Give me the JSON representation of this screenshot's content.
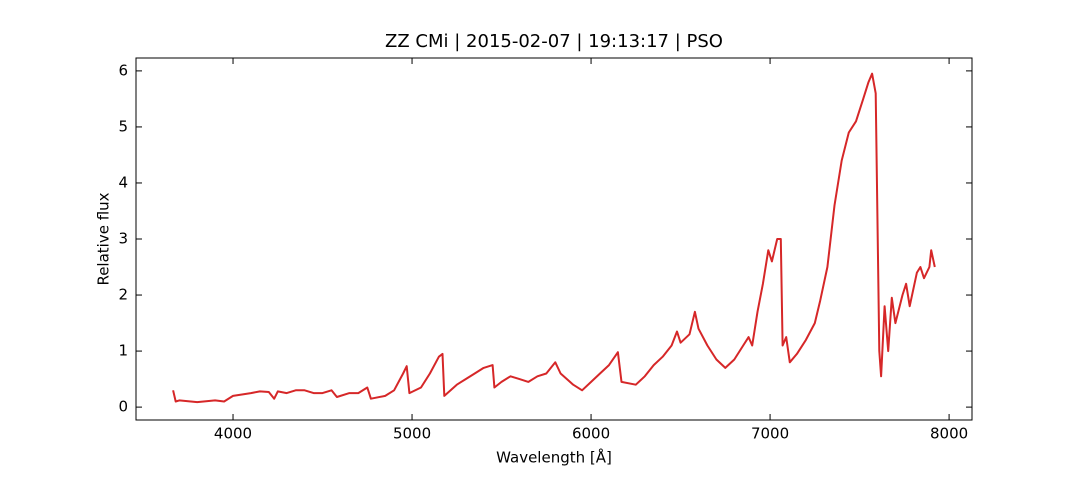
{
  "chart_data": {
    "type": "line",
    "title": "ZZ CMi | 2015-02-07 | 19:13:17 | PSO",
    "xlabel": "Wavelength [Å]",
    "ylabel": "Relative flux",
    "x": [
      3665,
      3680,
      3700,
      3800,
      3900,
      3950,
      4000,
      4100,
      4150,
      4200,
      4230,
      4250,
      4300,
      4350,
      4400,
      4450,
      4500,
      4550,
      4580,
      4650,
      4700,
      4750,
      4770,
      4850,
      4900,
      4950,
      4970,
      4985,
      5050,
      5100,
      5150,
      5170,
      5180,
      5250,
      5300,
      5350,
      5400,
      5450,
      5460,
      5500,
      5550,
      5600,
      5650,
      5700,
      5750,
      5800,
      5830,
      5900,
      5950,
      6000,
      6050,
      6100,
      6150,
      6170,
      6250,
      6300,
      6350,
      6400,
      6450,
      6480,
      6500,
      6550,
      6580,
      6600,
      6650,
      6700,
      6750,
      6800,
      6850,
      6880,
      6900,
      6930,
      6960,
      6990,
      7010,
      7040,
      7060,
      7070,
      7090,
      7110,
      7150,
      7200,
      7250,
      7280,
      7320,
      7360,
      7400,
      7440,
      7480,
      7520,
      7550,
      7570,
      7590,
      7610,
      7620,
      7640,
      7660,
      7680,
      7700,
      7740,
      7760,
      7780,
      7820,
      7840,
      7860,
      7890,
      7900,
      7920
    ],
    "series": [
      {
        "name": "ZZ CMi",
        "color": "#d62728",
        "values": [
          0.3,
          0.1,
          0.12,
          0.09,
          0.12,
          0.1,
          0.2,
          0.25,
          0.28,
          0.27,
          0.15,
          0.28,
          0.25,
          0.3,
          0.3,
          0.25,
          0.25,
          0.3,
          0.18,
          0.25,
          0.25,
          0.35,
          0.15,
          0.2,
          0.3,
          0.6,
          0.73,
          0.25,
          0.35,
          0.6,
          0.9,
          0.95,
          0.2,
          0.4,
          0.5,
          0.6,
          0.7,
          0.75,
          0.35,
          0.45,
          0.55,
          0.5,
          0.45,
          0.55,
          0.6,
          0.8,
          0.6,
          0.4,
          0.3,
          0.45,
          0.6,
          0.75,
          0.98,
          0.45,
          0.4,
          0.55,
          0.75,
          0.9,
          1.1,
          1.35,
          1.15,
          1.3,
          1.7,
          1.4,
          1.1,
          0.85,
          0.7,
          0.85,
          1.1,
          1.25,
          1.1,
          1.7,
          2.2,
          2.8,
          2.6,
          3.0,
          3.0,
          1.1,
          1.25,
          0.8,
          0.95,
          1.2,
          1.5,
          1.9,
          2.5,
          3.6,
          4.4,
          4.9,
          5.1,
          5.5,
          5.8,
          5.95,
          5.6,
          1.0,
          0.55,
          1.8,
          1.0,
          1.95,
          1.5,
          2.0,
          2.2,
          1.8,
          2.4,
          2.5,
          2.3,
          2.5,
          2.8,
          2.5
        ]
      }
    ],
    "xlim": [
      3458,
      8128
    ],
    "ylim": [
      -0.23,
      6.23
    ],
    "xticks": [
      4000,
      5000,
      6000,
      7000,
      8000
    ],
    "yticks": [
      0,
      1,
      2,
      3,
      4,
      5,
      6
    ]
  }
}
